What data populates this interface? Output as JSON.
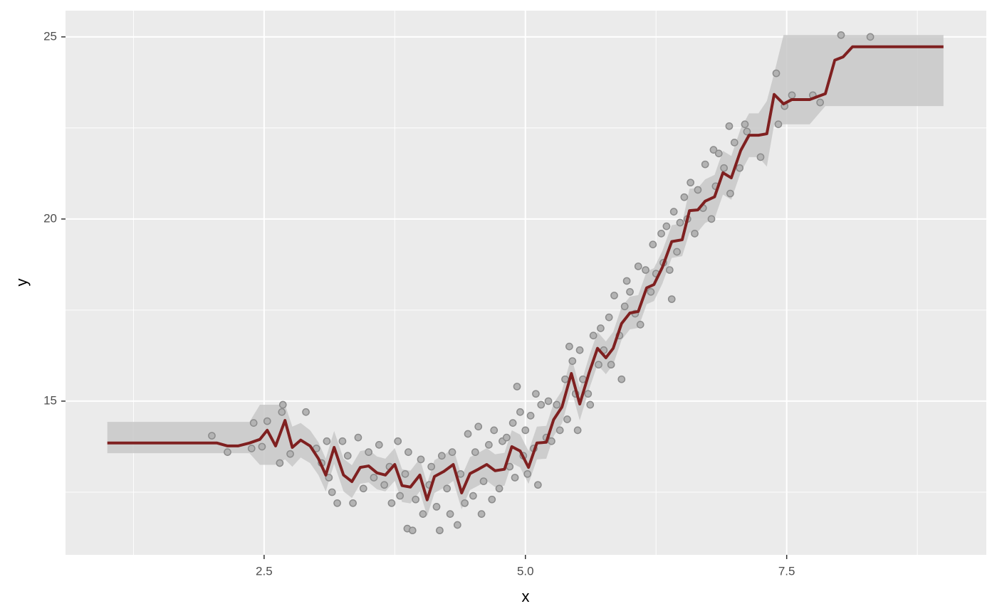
{
  "chart_data": {
    "type": "scatter",
    "x_label": "x",
    "y_label": "y",
    "xlim": [
      0.6,
      9.41
    ],
    "ylim": [
      10.78,
      25.72
    ],
    "xticks": [
      2.5,
      {
        "value": 5,
        "label": "5.0"
      },
      7.5
    ],
    "yticks": [
      15,
      20,
      25
    ],
    "x_minor_grid": [
      1.25,
      3.75,
      6.25,
      8.75
    ],
    "y_minor_grid": [
      12.5,
      17.5,
      22.5
    ],
    "grid": true,
    "background": "#ebebeb",
    "points": {
      "color": "#b3b3b3",
      "edgecolor": "#8c8c8c",
      "x": [
        2.0,
        2.15,
        2.38,
        2.4,
        2.48,
        2.53,
        2.65,
        2.67,
        2.68,
        2.75,
        2.9,
        3.15,
        3.2,
        3.35,
        3.87,
        3.92,
        4.18,
        4.92,
        5.42,
        5.97,
        6.4,
        6.8,
        6.95,
        7.1,
        7.25,
        7.4,
        7.48,
        7.42,
        7.55,
        7.75,
        7.82,
        8.02,
        8.3,
        3.0,
        3.05,
        3.1,
        3.12,
        3.25,
        3.3,
        3.4,
        3.45,
        3.5,
        3.55,
        3.6,
        3.65,
        3.7,
        3.72,
        3.78,
        3.8,
        3.85,
        3.88,
        3.95,
        4.0,
        4.02,
        4.08,
        4.1,
        4.15,
        4.2,
        4.25,
        4.28,
        4.3,
        4.35,
        4.38,
        4.42,
        4.45,
        4.5,
        4.52,
        4.55,
        4.58,
        4.6,
        4.65,
        4.68,
        4.7,
        4.75,
        4.78,
        4.82,
        4.85,
        4.88,
        4.9,
        4.95,
        4.98,
        5.0,
        5.02,
        5.05,
        5.08,
        5.1,
        5.12,
        5.15,
        5.2,
        5.22,
        5.25,
        5.3,
        5.33,
        5.38,
        5.4,
        5.45,
        5.48,
        5.5,
        5.52,
        5.55,
        5.6,
        5.62,
        5.65,
        5.7,
        5.72,
        5.75,
        5.8,
        5.82,
        5.85,
        5.9,
        5.92,
        5.95,
        6.0,
        6.05,
        6.08,
        6.1,
        6.15,
        6.2,
        6.22,
        6.25,
        6.3,
        6.32,
        6.35,
        6.38,
        6.42,
        6.45,
        6.48,
        6.52,
        6.55,
        6.58,
        6.62,
        6.65,
        6.7,
        6.72,
        6.78,
        6.82,
        6.85,
        6.9,
        6.96,
        7.0,
        7.05,
        7.12
      ],
      "y": [
        14.05,
        13.6,
        13.7,
        14.4,
        13.75,
        14.45,
        13.3,
        14.7,
        14.9,
        13.55,
        14.7,
        12.5,
        12.2,
        12.2,
        11.5,
        11.45,
        11.45,
        15.4,
        16.5,
        18.3,
        17.8,
        21.9,
        22.55,
        22.6,
        21.7,
        24.0,
        23.1,
        22.6,
        23.4,
        23.4,
        23.2,
        25.05,
        25.0,
        13.7,
        13.3,
        13.9,
        12.9,
        13.9,
        13.5,
        14.0,
        12.6,
        13.6,
        12.9,
        13.8,
        12.7,
        13.2,
        12.2,
        13.9,
        12.4,
        13.0,
        13.6,
        12.3,
        13.4,
        11.9,
        12.7,
        13.2,
        12.1,
        13.5,
        12.6,
        11.9,
        13.6,
        11.6,
        13.0,
        12.2,
        14.1,
        12.4,
        13.6,
        14.3,
        11.9,
        12.8,
        13.8,
        12.3,
        14.2,
        12.6,
        13.9,
        14.0,
        13.2,
        14.4,
        12.9,
        14.7,
        13.5,
        14.2,
        13.0,
        14.6,
        13.7,
        15.2,
        12.7,
        14.9,
        14.0,
        15.0,
        13.9,
        14.9,
        14.2,
        15.6,
        14.5,
        16.1,
        15.2,
        14.2,
        16.4,
        15.6,
        15.2,
        14.9,
        16.8,
        16.0,
        17.0,
        16.4,
        17.3,
        16.0,
        17.9,
        16.8,
        15.6,
        17.6,
        18.0,
        17.4,
        18.7,
        17.1,
        18.6,
        18.0,
        19.3,
        18.5,
        19.6,
        18.8,
        19.8,
        18.6,
        20.2,
        19.1,
        19.9,
        20.6,
        20.0,
        21.0,
        19.6,
        20.8,
        20.3,
        21.5,
        20.0,
        20.9,
        21.8,
        21.4,
        20.7,
        22.1,
        21.4,
        22.4
      ]
    },
    "line": {
      "color": "#7f2020",
      "x": [
        1.0,
        2.05,
        2.15,
        2.25,
        2.36,
        2.46,
        2.53,
        2.61,
        2.7,
        2.77,
        2.85,
        2.94,
        3.02,
        3.09,
        3.17,
        3.26,
        3.34,
        3.42,
        3.5,
        3.58,
        3.66,
        3.75,
        3.82,
        3.9,
        3.99,
        4.06,
        4.13,
        4.22,
        4.31,
        4.39,
        4.47,
        4.55,
        4.63,
        4.71,
        4.8,
        4.87,
        4.95,
        5.03,
        5.11,
        5.2,
        5.27,
        5.35,
        5.44,
        5.52,
        5.61,
        5.69,
        5.77,
        5.84,
        5.92,
        6.0,
        6.08,
        6.16,
        6.23,
        6.31,
        6.4,
        6.5,
        6.57,
        6.65,
        6.72,
        6.81,
        6.89,
        6.97,
        7.06,
        7.14,
        7.23,
        7.31,
        7.38,
        7.47,
        7.55,
        7.64,
        7.72,
        7.87,
        7.96,
        8.04,
        8.13,
        9.0
      ],
      "y": [
        13.85,
        13.85,
        13.77,
        13.77,
        13.85,
        13.95,
        14.2,
        13.77,
        14.47,
        13.73,
        13.93,
        13.77,
        13.42,
        12.97,
        13.73,
        12.97,
        12.79,
        13.18,
        13.22,
        13.03,
        12.97,
        13.26,
        12.68,
        12.64,
        12.97,
        12.29,
        12.93,
        13.07,
        13.26,
        12.48,
        13.01,
        13.13,
        13.26,
        13.09,
        13.13,
        13.75,
        13.63,
        13.18,
        13.85,
        13.87,
        14.49,
        14.84,
        15.76,
        14.92,
        15.78,
        16.45,
        16.19,
        16.45,
        17.13,
        17.42,
        17.46,
        18.11,
        18.2,
        18.67,
        19.38,
        19.43,
        20.23,
        20.25,
        20.49,
        20.61,
        21.27,
        21.13,
        21.88,
        22.3,
        22.3,
        22.34,
        23.42,
        23.16,
        23.28,
        23.28,
        23.28,
        23.44,
        24.36,
        24.45,
        24.73,
        24.73
      ]
    },
    "ribbon": {
      "color": "#c8c8c8",
      "upper": [
        14.43,
        14.43,
        14.43,
        14.43,
        14.43,
        14.9,
        14.9,
        14.9,
        14.9,
        14.3,
        14.4,
        14.2,
        13.87,
        13.42,
        14.18,
        13.42,
        13.24,
        13.63,
        13.67,
        13.48,
        13.42,
        13.71,
        13.13,
        13.09,
        13.42,
        12.74,
        13.38,
        13.52,
        13.71,
        12.93,
        13.46,
        13.58,
        13.71,
        13.54,
        13.58,
        14.2,
        14.08,
        13.63,
        14.3,
        14.32,
        14.94,
        15.29,
        16.21,
        15.37,
        16.23,
        16.9,
        16.64,
        16.9,
        17.58,
        17.87,
        17.91,
        18.56,
        18.65,
        19.12,
        19.83,
        19.88,
        20.83,
        20.85,
        21.09,
        21.21,
        21.87,
        21.73,
        22.48,
        22.9,
        22.9,
        23.24,
        24.0,
        25.05,
        25.05,
        25.05,
        25.05,
        25.05,
        25.05,
        25.05,
        25.05,
        25.05
      ],
      "lower": [
        13.57,
        13.57,
        13.57,
        13.57,
        13.57,
        13.25,
        13.25,
        13.25,
        13.4,
        13.2,
        13.45,
        13.3,
        12.97,
        12.52,
        13.28,
        12.52,
        12.34,
        12.73,
        12.77,
        12.58,
        12.52,
        12.81,
        12.23,
        12.19,
        12.52,
        11.84,
        12.48,
        12.62,
        12.81,
        12.03,
        12.56,
        12.68,
        12.81,
        12.64,
        12.68,
        13.3,
        13.18,
        12.73,
        13.4,
        13.42,
        14.04,
        14.39,
        15.31,
        14.47,
        15.33,
        16.0,
        15.74,
        16.0,
        16.68,
        16.97,
        17.01,
        17.66,
        17.75,
        18.22,
        18.93,
        18.98,
        19.63,
        19.65,
        19.89,
        20.01,
        20.67,
        20.53,
        21.28,
        21.7,
        21.7,
        21.44,
        22.6,
        22.6,
        22.6,
        22.6,
        22.6,
        23.1,
        23.1,
        23.1,
        23.1,
        23.1
      ]
    }
  }
}
